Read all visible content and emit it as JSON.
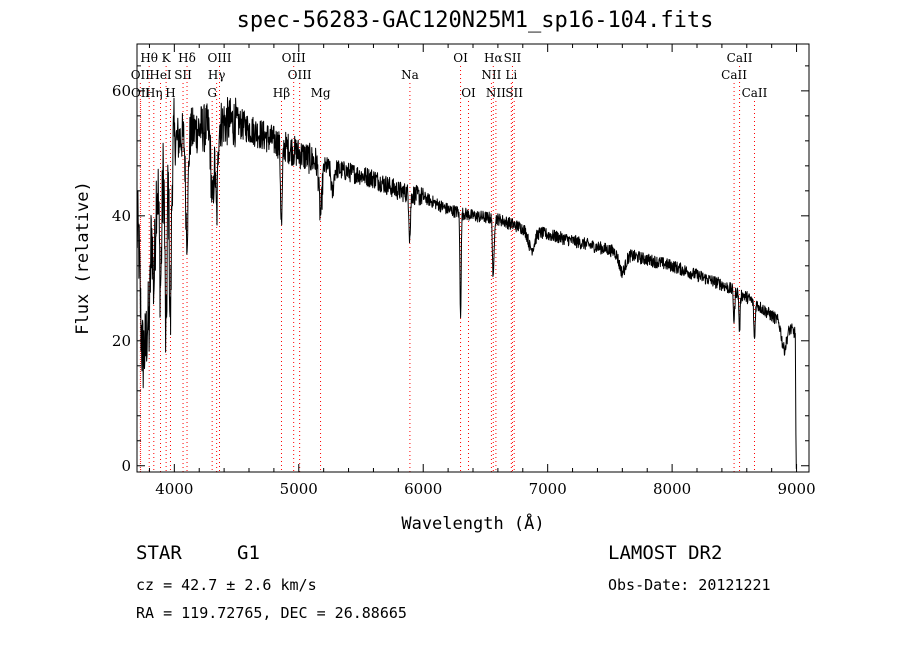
{
  "chart_data": {
    "type": "line",
    "title": "spec-56283-GAC120N25M1_sp16-104.fits",
    "xlabel": "Wavelength (Å)",
    "ylabel": "Flux (relative)",
    "xlim": [
      3700,
      9100
    ],
    "ylim": [
      -1,
      67.5
    ],
    "x_ticks": [
      4000,
      5000,
      6000,
      7000,
      8000,
      9000
    ],
    "y_ticks": [
      0,
      20,
      40,
      60
    ],
    "grid": false,
    "continuum": [
      [
        3700,
        38
      ],
      [
        3750,
        40
      ],
      [
        3800,
        42
      ],
      [
        3900,
        48
      ],
      [
        4000,
        52
      ],
      [
        4100,
        53
      ],
      [
        4200,
        54
      ],
      [
        4300,
        54
      ],
      [
        4400,
        55
      ],
      [
        4500,
        55
      ],
      [
        4600,
        54
      ],
      [
        4700,
        53
      ],
      [
        4800,
        52
      ],
      [
        4900,
        51
      ],
      [
        5000,
        50
      ],
      [
        5200,
        48
      ],
      [
        5400,
        47
      ],
      [
        5600,
        46
      ],
      [
        5800,
        44
      ],
      [
        6000,
        43
      ],
      [
        6200,
        41
      ],
      [
        6400,
        40
      ],
      [
        6600,
        39.5
      ],
      [
        6800,
        38
      ],
      [
        7000,
        37
      ],
      [
        7200,
        36
      ],
      [
        7400,
        35
      ],
      [
        7600,
        34
      ],
      [
        7800,
        33
      ],
      [
        8000,
        32
      ],
      [
        8200,
        30.5
      ],
      [
        8400,
        29
      ],
      [
        8600,
        27
      ],
      [
        8800,
        24
      ],
      [
        8950,
        22
      ],
      [
        9000,
        21
      ]
    ],
    "absorption_features": [
      {
        "x": 3734,
        "depth": 14,
        "width": 12
      },
      {
        "x": 3750,
        "depth": 12,
        "width": 10
      },
      {
        "x": 3771,
        "depth": 20,
        "width": 12
      },
      {
        "x": 3798,
        "depth": 18,
        "width": 10
      },
      {
        "x": 3835,
        "depth": 15,
        "width": 10
      },
      {
        "x": 3889,
        "depth": 18,
        "width": 10
      },
      {
        "x": 3933,
        "depth": 30,
        "width": 8
      },
      {
        "x": 3968,
        "depth": 28,
        "width": 8
      },
      {
        "x": 4101,
        "depth": 16,
        "width": 10
      },
      {
        "x": 4307,
        "depth": 12,
        "width": 12
      },
      {
        "x": 4340,
        "depth": 14,
        "width": 8
      },
      {
        "x": 4861,
        "depth": 13,
        "width": 7
      },
      {
        "x": 5175,
        "depth": 8,
        "width": 12
      },
      {
        "x": 5270,
        "depth": 4,
        "width": 10
      },
      {
        "x": 5892,
        "depth": 7,
        "width": 6
      },
      {
        "x": 6300,
        "depth": 16,
        "width": 5
      },
      {
        "x": 6563,
        "depth": 10,
        "width": 6
      },
      {
        "x": 6870,
        "depth": 3,
        "width": 25
      },
      {
        "x": 7600,
        "depth": 3,
        "width": 25
      },
      {
        "x": 8498,
        "depth": 5,
        "width": 5
      },
      {
        "x": 8542,
        "depth": 6,
        "width": 5
      },
      {
        "x": 8662,
        "depth": 6,
        "width": 5
      },
      {
        "x": 8900,
        "depth": 4,
        "width": 20
      }
    ],
    "line_markers": [
      {
        "label": "Hθ",
        "x": 3798,
        "row": 0
      },
      {
        "label": "K",
        "x": 3934,
        "row": 0
      },
      {
        "label": "Hδ",
        "x": 4102,
        "row": 0
      },
      {
        "label": "OIII",
        "x": 4363,
        "row": 0
      },
      {
        "label": "OIII",
        "x": 4959,
        "row": 0
      },
      {
        "label": "OI",
        "x": 6300,
        "row": 0
      },
      {
        "label": "Hα",
        "x": 6563,
        "row": 0
      },
      {
        "label": "SII",
        "x": 6717,
        "row": 0
      },
      {
        "label": "CaII",
        "x": 8542,
        "row": 0
      },
      {
        "label": "OII",
        "x": 3727,
        "row": 1
      },
      {
        "label": "HeI",
        "x": 3889,
        "row": 1
      },
      {
        "label": "SII",
        "x": 4070,
        "row": 1
      },
      {
        "label": "Hγ",
        "x": 4340,
        "row": 1
      },
      {
        "label": "OIII",
        "x": 5007,
        "row": 1
      },
      {
        "label": "Na",
        "x": 5893,
        "row": 1
      },
      {
        "label": "NII",
        "x": 6548,
        "row": 1
      },
      {
        "label": "Li",
        "x": 6708,
        "row": 1
      },
      {
        "label": "CaII",
        "x": 8498,
        "row": 1
      },
      {
        "label": "OII",
        "x": 3729,
        "row": 2
      },
      {
        "label": "Hη",
        "x": 3835,
        "row": 2
      },
      {
        "label": "H",
        "x": 3969,
        "row": 2
      },
      {
        "label": "G",
        "x": 4304,
        "row": 2
      },
      {
        "label": "Hβ",
        "x": 4861,
        "row": 2
      },
      {
        "label": "Mg",
        "x": 5175,
        "row": 2
      },
      {
        "label": "OI",
        "x": 6364,
        "row": 2
      },
      {
        "label": "NII",
        "x": 6584,
        "row": 2
      },
      {
        "label": "SII",
        "x": 6731,
        "row": 2
      },
      {
        "label": "CaII",
        "x": 8662,
        "row": 2
      }
    ],
    "colors": {
      "spectrum": "#000000",
      "marker": "#ff0000",
      "axes": "#000000"
    }
  },
  "info": {
    "class": "STAR",
    "subclass": "G1",
    "survey": "LAMOST DR2",
    "cz": "cz = 42.7 ± 2.6 km/s",
    "obs_date": "Obs-Date: 20121221",
    "coords": "RA = 119.72765, DEC =  26.88665"
  }
}
